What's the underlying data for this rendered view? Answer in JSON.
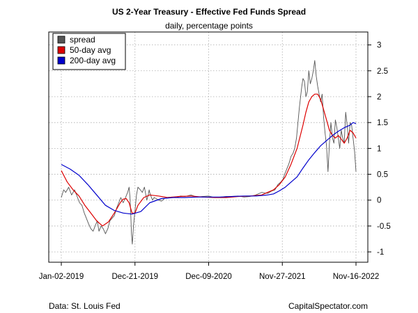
{
  "chart_data": {
    "type": "line",
    "title": "US 2-Year Treasury - Effective Fed Funds Spread",
    "subtitle": "daily, percentage points",
    "xlabel": "",
    "ylabel": "",
    "x_tick_labels": [
      "Jan-02-2019",
      "Dec-21-2019",
      "Dec-09-2020",
      "Nov-27-2021",
      "Nov-16-2022"
    ],
    "x_tick_positions": [
      0,
      250,
      500,
      750,
      1000
    ],
    "x_range": [
      0,
      1000
    ],
    "y_ticks": [
      -1,
      -0.5,
      0,
      0.5,
      1,
      1.5,
      2,
      2.5,
      3
    ],
    "y_tick_labels": [
      "-1",
      "-0.5",
      "0",
      "0.5",
      "1",
      "1.5",
      "2",
      "2.5",
      "3"
    ],
    "ylim": [
      -1.2,
      3.25
    ],
    "grid": true,
    "legend_position": "top-left",
    "series": [
      {
        "name": "spread",
        "color": "#555555",
        "x": [
          0,
          8,
          15,
          25,
          35,
          45,
          55,
          62,
          70,
          78,
          85,
          92,
          100,
          108,
          115,
          122,
          128,
          135,
          142,
          150,
          158,
          165,
          172,
          180,
          188,
          195,
          202,
          210,
          218,
          225,
          230,
          233,
          236,
          238,
          241,
          245,
          250,
          255,
          260,
          268,
          275,
          282,
          290,
          295,
          298,
          300,
          303,
          306,
          310,
          315,
          322,
          330,
          340,
          350,
          360,
          375,
          390,
          405,
          420,
          440,
          460,
          480,
          500,
          520,
          540,
          560,
          580,
          600,
          620,
          640,
          660,
          680,
          700,
          715,
          725,
          735,
          745,
          752,
          758,
          765,
          772,
          780,
          786,
          792,
          798,
          803,
          808,
          812,
          816,
          820,
          825,
          830,
          835,
          840,
          845,
          850,
          855,
          860,
          865,
          870,
          875,
          880,
          885,
          890,
          895,
          900,
          905,
          910,
          915,
          920,
          925,
          930,
          935,
          940,
          945,
          950,
          955,
          960,
          965,
          970,
          975,
          980,
          985,
          990,
          995,
          1000
        ],
        "values": [
          0.05,
          0.2,
          0.15,
          0.25,
          0.1,
          0.2,
          0.05,
          -0.05,
          -0.1,
          -0.25,
          -0.35,
          -0.45,
          -0.55,
          -0.6,
          -0.5,
          -0.4,
          -0.6,
          -0.5,
          -0.55,
          -0.65,
          -0.55,
          -0.4,
          -0.35,
          -0.3,
          -0.15,
          -0.05,
          0.05,
          -0.05,
          0.05,
          0.15,
          0.25,
          0.05,
          -0.3,
          -0.65,
          -0.85,
          -0.5,
          -0.2,
          0.1,
          0.25,
          0.2,
          0.15,
          0.25,
          0.0,
          0.1,
          0.2,
          0.15,
          0.1,
          0.05,
          0.0,
          0.05,
          0.03,
          0.0,
          -0.02,
          0.03,
          0.05,
          0.06,
          0.05,
          0.08,
          0.07,
          0.1,
          0.06,
          0.07,
          0.08,
          0.05,
          0.06,
          0.07,
          0.07,
          0.08,
          0.06,
          0.07,
          0.1,
          0.15,
          0.13,
          0.18,
          0.2,
          0.3,
          0.35,
          0.4,
          0.5,
          0.6,
          0.7,
          0.85,
          0.9,
          1.0,
          1.2,
          1.5,
          1.8,
          2.0,
          2.2,
          2.35,
          2.3,
          2.0,
          2.1,
          2.5,
          2.25,
          2.35,
          2.5,
          2.7,
          2.4,
          2.2,
          2.05,
          1.9,
          2.05,
          1.6,
          1.3,
          1.05,
          0.55,
          1.1,
          1.5,
          1.2,
          1.1,
          1.55,
          1.4,
          1.2,
          1.0,
          1.35,
          1.2,
          1.1,
          1.7,
          1.45,
          1.1,
          1.5,
          1.45,
          1.2,
          0.95,
          0.55
        ]
      },
      {
        "name": "50-day avg",
        "color": "#dd0000",
        "x": [
          0,
          20,
          40,
          60,
          80,
          100,
          120,
          140,
          160,
          180,
          200,
          210,
          220,
          230,
          240,
          250,
          260,
          280,
          300,
          330,
          360,
          400,
          440,
          480,
          520,
          560,
          600,
          640,
          680,
          700,
          720,
          740,
          760,
          780,
          800,
          820,
          830,
          840,
          850,
          860,
          870,
          880,
          890,
          900,
          910,
          920,
          930,
          940,
          950,
          960,
          970,
          980,
          990,
          1000
        ],
        "values": [
          0.57,
          0.35,
          0.2,
          0.08,
          -0.1,
          -0.25,
          -0.4,
          -0.5,
          -0.42,
          -0.25,
          -0.05,
          0.02,
          0.03,
          -0.05,
          -0.25,
          -0.25,
          -0.1,
          0.05,
          0.1,
          0.08,
          0.05,
          0.07,
          0.08,
          0.06,
          0.05,
          0.05,
          0.07,
          0.08,
          0.1,
          0.15,
          0.2,
          0.3,
          0.45,
          0.7,
          1.0,
          1.45,
          1.7,
          1.9,
          2.0,
          2.05,
          2.05,
          1.95,
          1.75,
          1.55,
          1.35,
          1.25,
          1.2,
          1.25,
          1.18,
          1.1,
          1.2,
          1.35,
          1.3,
          1.2
        ]
      },
      {
        "name": "200-day avg",
        "color": "#0000cc",
        "x": [
          0,
          30,
          60,
          90,
          120,
          150,
          180,
          210,
          240,
          270,
          300,
          340,
          380,
          420,
          460,
          500,
          540,
          580,
          620,
          660,
          700,
          720,
          740,
          760,
          780,
          800,
          820,
          840,
          860,
          880,
          900,
          920,
          940,
          960,
          980,
          990,
          1000
        ],
        "values": [
          0.69,
          0.6,
          0.48,
          0.3,
          0.1,
          -0.1,
          -0.2,
          -0.25,
          -0.27,
          -0.22,
          -0.05,
          0.03,
          0.05,
          0.05,
          0.06,
          0.06,
          0.06,
          0.07,
          0.08,
          0.08,
          0.1,
          0.12,
          0.18,
          0.25,
          0.35,
          0.45,
          0.62,
          0.78,
          0.92,
          1.05,
          1.15,
          1.25,
          1.33,
          1.4,
          1.45,
          1.5,
          1.48
        ]
      }
    ]
  },
  "footer": {
    "source": "Data: St. Louis Fed",
    "credit": "CapitalSpectator.com"
  },
  "colors": {
    "grid": "#aaaaaa",
    "axis": "#000000",
    "background": "#ffffff"
  }
}
